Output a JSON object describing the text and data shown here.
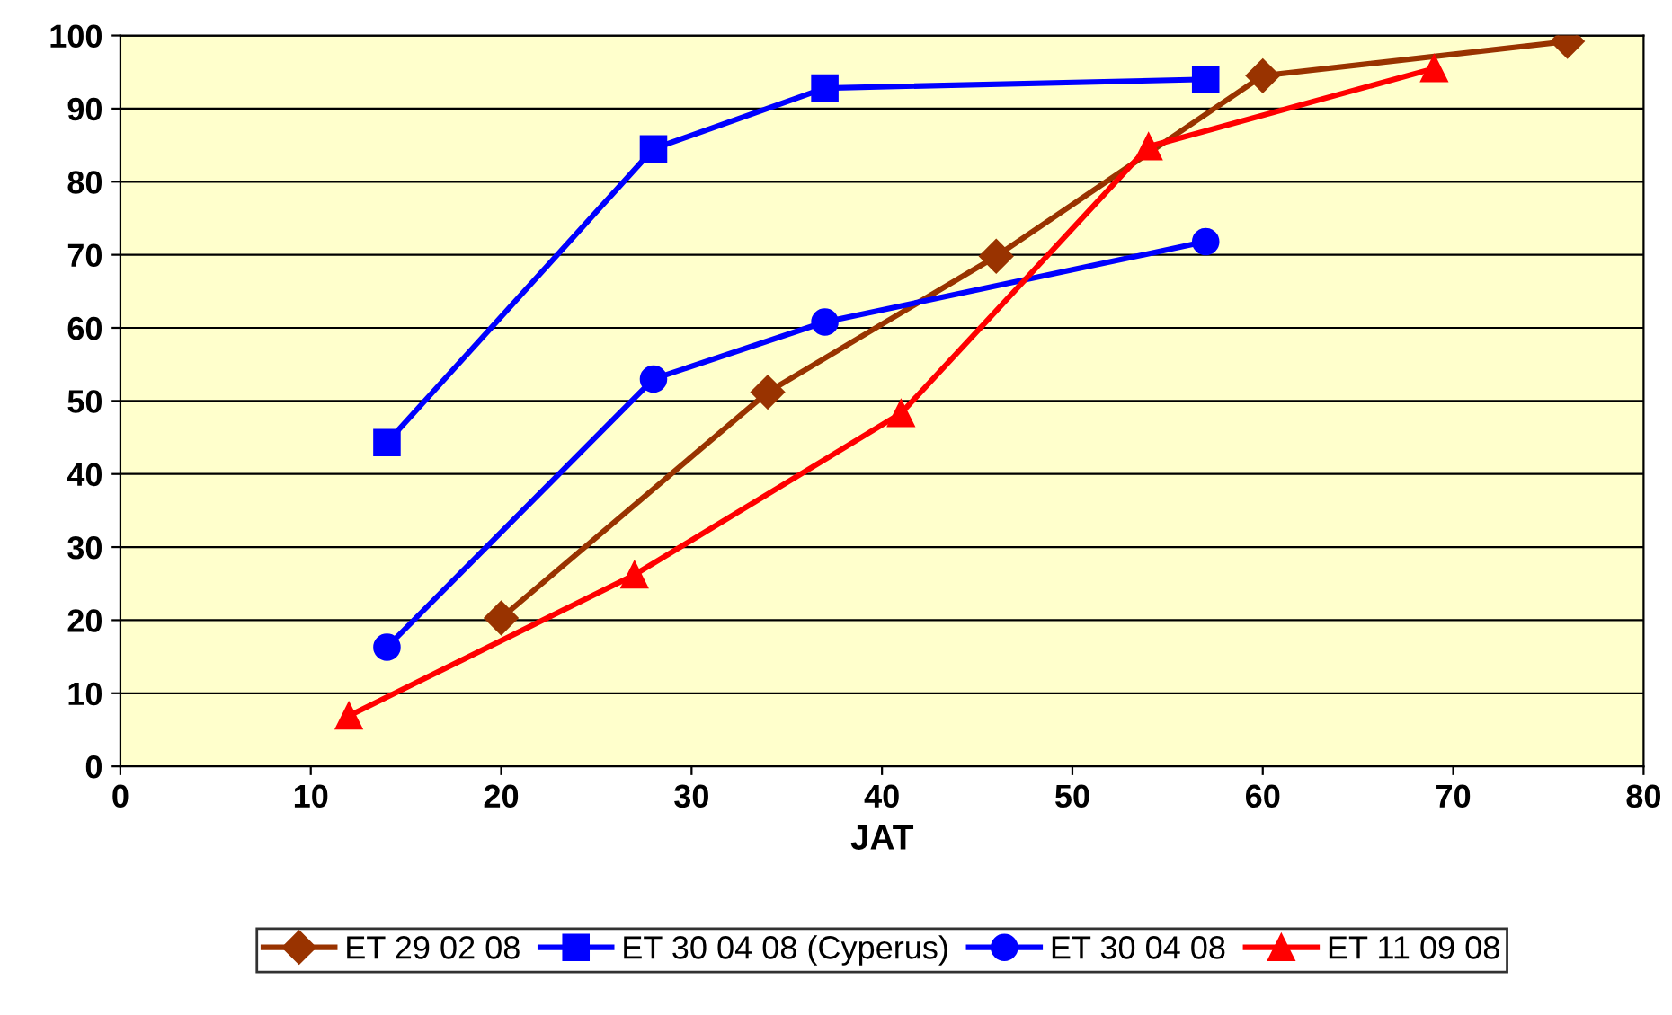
{
  "chart_data": {
    "type": "line",
    "xlabel": "JAT",
    "xlim": [
      0,
      80
    ],
    "xticks": [
      0,
      10,
      20,
      30,
      40,
      50,
      60,
      70,
      80
    ],
    "ylim": [
      0,
      100
    ],
    "yticks": [
      0,
      10,
      20,
      30,
      40,
      50,
      60,
      70,
      80,
      90,
      100
    ],
    "grid": "y",
    "legend": "bottom",
    "line_style": "solid",
    "series": [
      {
        "name": "ET 29 02 08",
        "color": "#993300",
        "marker": "diamond",
        "x": [
          20,
          34,
          46,
          60,
          76
        ],
        "values": [
          20.3,
          51.2,
          69.8,
          94.5,
          99.2
        ]
      },
      {
        "name": "ET 30 04 08 (Cyperus)",
        "color": "#0000ff",
        "marker": "square",
        "x": [
          14,
          28,
          37,
          57
        ],
        "values": [
          44.3,
          84.5,
          92.8,
          94
        ]
      },
      {
        "name": "ET 30 04 08",
        "color": "#0000ff",
        "marker": "circle",
        "x": [
          14,
          28,
          37,
          57
        ],
        "values": [
          16.3,
          53,
          60.8,
          71.8
        ]
      },
      {
        "name": "ET 11 09 08",
        "color": "#ff0000",
        "marker": "triangle",
        "x": [
          12,
          27,
          41,
          54,
          69
        ],
        "values": [
          6.9,
          26.2,
          48.3,
          84.8,
          95.5
        ]
      }
    ]
  }
}
